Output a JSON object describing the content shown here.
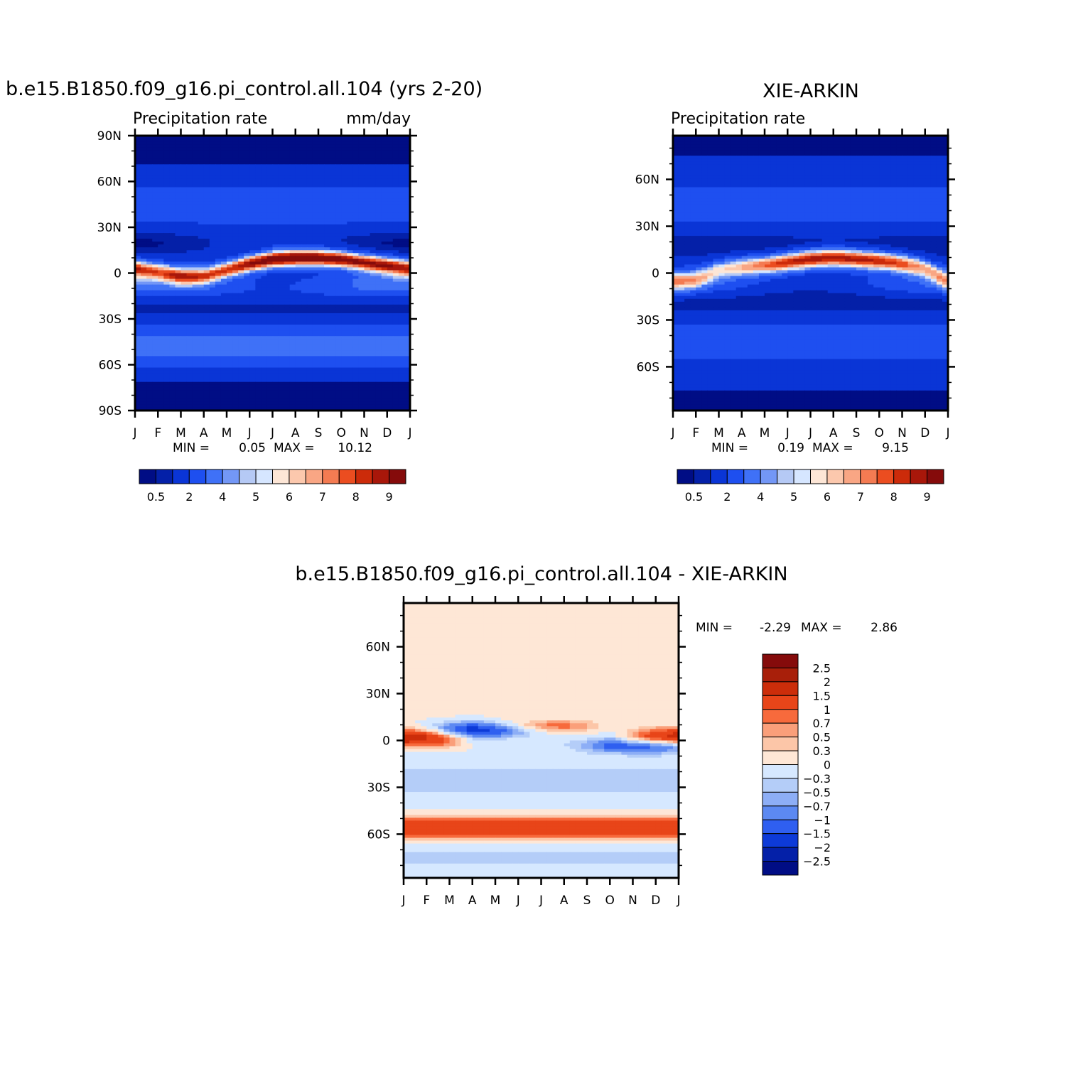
{
  "colors": {
    "precip_fill": [
      "#000d85",
      "#0420a8",
      "#0a35d6",
      "#1e4ff0",
      "#3f71f7",
      "#7397f6",
      "#b5c9f5",
      "#d6e6ff",
      "#fde6d6",
      "#fcc8ad",
      "#f9a684",
      "#f47b52",
      "#eb4d20",
      "#cc2b0a",
      "#a8170a",
      "#850b0b"
    ],
    "diff_fill": [
      "#850b0b",
      "#a81f0a",
      "#cc2d0a",
      "#e84519",
      "#f76a3c",
      "#fa9f7a",
      "#fcc6a8",
      "#fee7d6",
      "#d6e8ff",
      "#b4cdf8",
      "#8daef6",
      "#5c89f2",
      "#2f5ff0",
      "#0d3ad8",
      "#0420a8",
      "#000d85"
    ]
  },
  "chart_data": [
    {
      "type": "heatmap",
      "title": "b.e15.B1850.f09_g16.pi_control.all.104 (yrs 2-20)",
      "subtitle_left": "Precipitation rate",
      "subtitle_right": "mm/day",
      "x_tick_labels": [
        "J",
        "F",
        "M",
        "A",
        "M",
        "J",
        "J",
        "A",
        "S",
        "O",
        "N",
        "D",
        "J"
      ],
      "y_tick_labels": [
        "90N",
        "60N",
        "30N",
        "0",
        "30S",
        "60S",
        "90S"
      ],
      "y_tick_values": [
        90,
        60,
        30,
        0,
        -30,
        -60,
        -90
      ],
      "ylim": [
        -90,
        90
      ],
      "min_label": "MIN =",
      "min_value": "0.05",
      "max_label": "MAX =",
      "max_value": "10.12",
      "colorbar_levels": [
        0.5,
        1,
        2,
        3,
        4,
        4.5,
        5,
        5.5,
        6,
        6.5,
        7,
        7.5,
        8,
        8.5,
        9
      ],
      "colorbar_labels": [
        "0.5",
        "2",
        "4",
        "5",
        "6",
        "7",
        "8",
        "9"
      ],
      "itcz_peak_lat": [
        3,
        1,
        -2,
        -2,
        2,
        6,
        9,
        10,
        10,
        9,
        7,
        5,
        3
      ],
      "itcz_peak_value": [
        7.5,
        6.5,
        7.5,
        7.2,
        7.6,
        8.8,
        9.6,
        10.1,
        9.8,
        9.2,
        8.8,
        8.5,
        7.5
      ]
    },
    {
      "type": "heatmap",
      "title": "XIE-ARKIN",
      "subtitle_left": "Precipitation rate",
      "subtitle_right": "",
      "x_tick_labels": [
        "J",
        "F",
        "M",
        "A",
        "M",
        "J",
        "J",
        "A",
        "S",
        "O",
        "N",
        "D",
        "J"
      ],
      "y_tick_labels": [
        "60N",
        "30N",
        "0",
        "30S",
        "60S"
      ],
      "y_tick_values": [
        60,
        30,
        0,
        -30,
        -60
      ],
      "ylim": [
        -88,
        88
      ],
      "min_label": "MIN =",
      "min_value": "0.19",
      "max_label": "MAX =",
      "max_value": "9.15",
      "colorbar_levels": [
        0.5,
        1,
        2,
        3,
        4,
        4.5,
        5,
        5.5,
        6,
        6.5,
        7,
        7.5,
        8,
        8.5,
        9
      ],
      "colorbar_labels": [
        "0.5",
        "2",
        "4",
        "5",
        "6",
        "7",
        "8",
        "9"
      ],
      "itcz_peak_lat": [
        -5,
        -4,
        2,
        4,
        5,
        7,
        9,
        10,
        9,
        8,
        6,
        3,
        -5
      ],
      "itcz_peak_value": [
        6.0,
        5.8,
        5.5,
        6.5,
        7.6,
        8.6,
        9.0,
        9.1,
        8.9,
        8.6,
        7.8,
        6.5,
        6.0
      ]
    },
    {
      "type": "heatmap",
      "title": "b.e15.B1850.f09_g16.pi_control.all.104 - XIE-ARKIN",
      "x_tick_labels": [
        "J",
        "F",
        "M",
        "A",
        "M",
        "J",
        "J",
        "A",
        "S",
        "O",
        "N",
        "D",
        "J"
      ],
      "y_tick_labels": [
        "60N",
        "30N",
        "0",
        "30S",
        "60S"
      ],
      "y_tick_values": [
        60,
        30,
        0,
        -30,
        -60
      ],
      "ylim": [
        -88,
        88
      ],
      "min_label": "MIN =",
      "min_value": "-2.29",
      "max_label": "MAX =",
      "max_value": "2.86",
      "colorbar_levels": [
        2.5,
        2,
        1.5,
        1,
        0.7,
        0.5,
        0.3,
        0,
        -0.3,
        -0.5,
        -0.7,
        -1,
        -1.5,
        -2,
        -2.5
      ],
      "colorbar_labels": [
        "2.5",
        "2",
        "1.5",
        "1",
        "0.7",
        "0.5",
        "0.3",
        "0",
        "−0.3",
        "−0.5",
        "−0.7",
        "−1",
        "−1.5",
        "−2",
        "−2.5"
      ]
    }
  ]
}
